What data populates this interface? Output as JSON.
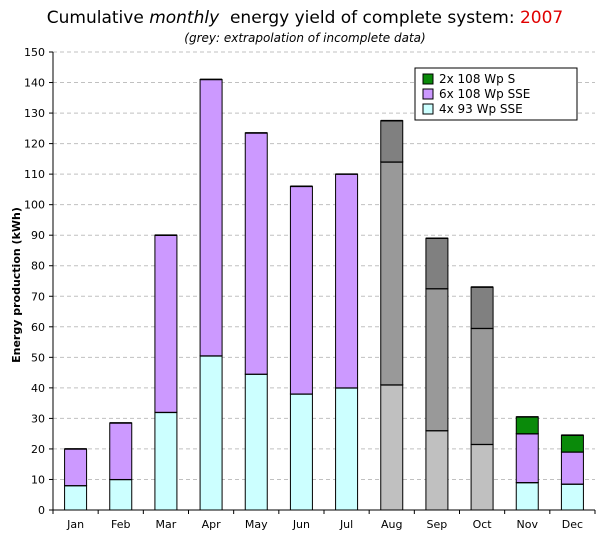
{
  "title": {
    "prefix": "Cumulative",
    "emphasis": "monthly",
    "suffix": "energy yield of complete system:",
    "year": "2007"
  },
  "subtitle": "(grey: extrapolation of incomplete data)",
  "colors": {
    "s_green": "#0a8a0a",
    "sse_purple": "#cc99ff",
    "sse93_cyan": "#ccffff",
    "grey_light": "#c0c0c0",
    "grey_mid": "#999999",
    "grey_dark": "#808080",
    "title_year": "#e00000"
  },
  "chart_data": {
    "type": "bar",
    "stacked": true,
    "categories": [
      "Jan",
      "Feb",
      "Mar",
      "Apr",
      "May",
      "Jun",
      "Jul",
      "Aug",
      "Sep",
      "Oct",
      "Nov",
      "Dec"
    ],
    "series": [
      {
        "name": "4x 93 Wp SSE",
        "color": "#ccffff",
        "values": [
          8,
          10,
          32,
          50.5,
          44.5,
          38,
          40,
          41,
          26,
          21.5,
          9,
          8.5
        ]
      },
      {
        "name": "6x 108 Wp SSE",
        "color": "#cc99ff",
        "values": [
          12,
          18.5,
          58,
          90.5,
          79,
          68,
          70,
          73,
          46.5,
          38,
          16,
          10.5
        ]
      },
      {
        "name": "2x 108 Wp S",
        "color": "#0a8a0a",
        "values": [
          0,
          0,
          0,
          0,
          0,
          0,
          0,
          13.5,
          16.5,
          13.5,
          5.5,
          5.5
        ]
      }
    ],
    "extrapolated_months": [
      "Aug",
      "Sep",
      "Oct"
    ],
    "ylabel": "Energy production (kWh)",
    "xlabel": "",
    "ylim": [
      0,
      150
    ],
    "yticks": [
      0,
      10,
      20,
      30,
      40,
      50,
      60,
      70,
      80,
      90,
      100,
      110,
      120,
      130,
      140,
      150
    ],
    "grid": true,
    "legend_position": "top-right"
  }
}
